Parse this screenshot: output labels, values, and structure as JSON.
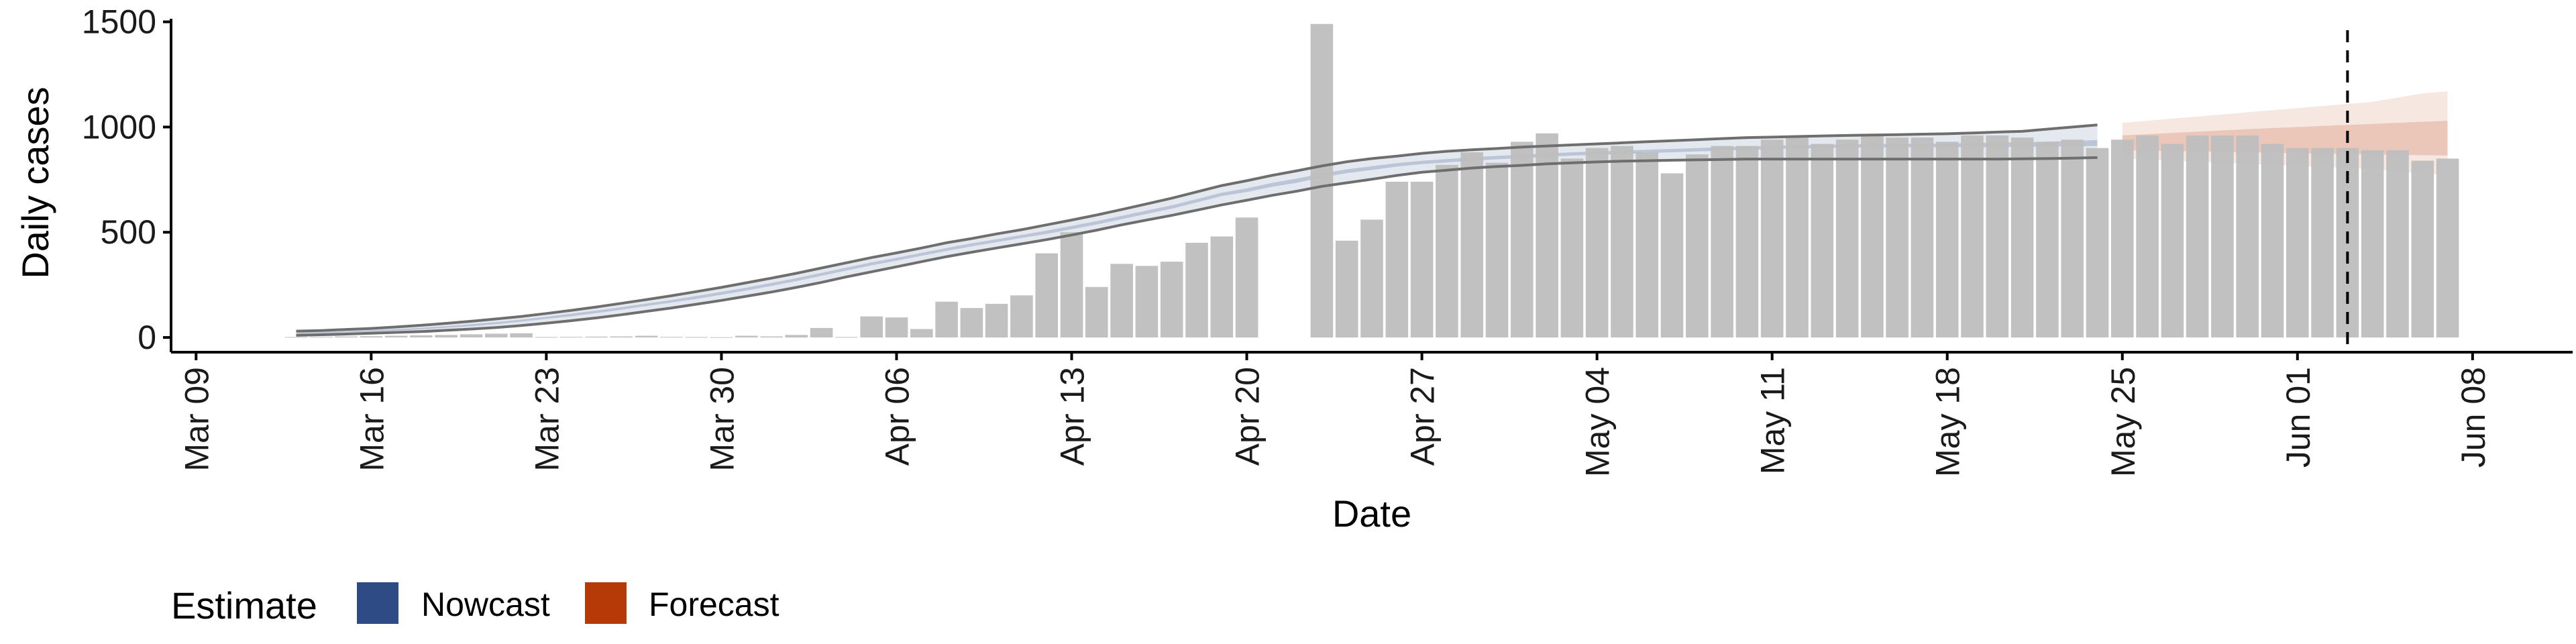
{
  "chart_data": {
    "type": "bar",
    "title": "",
    "xlabel": "Date",
    "ylabel": "Daily cases",
    "ylim": [
      -70,
      1540
    ],
    "y_ticks": [
      0,
      500,
      1000,
      1500
    ],
    "x_ticks": [
      "Mar 09",
      "Mar 16",
      "Mar 23",
      "Mar 30",
      "Apr 06",
      "Apr 13",
      "Apr 20",
      "Apr 27",
      "May 04",
      "May 11",
      "May 18",
      "May 25",
      "Jun 01",
      "Jun 08"
    ],
    "x_range": [
      "2020-03-08",
      "2020-06-12"
    ],
    "vline_date": "2020-06-03",
    "colors": {
      "bars": "#bebebe",
      "nowcast": "#2f4b86",
      "forecast": "#b53a07",
      "ci_line": "#6e6e6e"
    },
    "legend": {
      "title": "Estimate",
      "position": "bottom-left",
      "items": [
        {
          "label": "Nowcast",
          "color": "#2f4b86"
        },
        {
          "label": "Forecast",
          "color": "#b53a07"
        }
      ]
    },
    "series": [
      {
        "name": "Daily cases",
        "start_date": "2020-03-13",
        "values": [
          2,
          3,
          5,
          6,
          8,
          10,
          12,
          15,
          18,
          20,
          2,
          3,
          4,
          5,
          8,
          3,
          2,
          1,
          8,
          5,
          12,
          45,
          2,
          100,
          95,
          40,
          170,
          140,
          160,
          200,
          400,
          500,
          240,
          350,
          340,
          360,
          450,
          480,
          570,
          null,
          null,
          1490,
          460,
          560,
          740,
          740,
          820,
          880,
          830,
          930,
          970,
          850,
          900,
          910,
          880,
          780,
          870,
          910,
          910,
          940,
          950,
          920,
          940,
          960,
          950,
          950,
          930,
          960,
          960,
          950,
          930,
          940,
          900,
          940,
          960,
          920,
          960,
          960,
          960,
          920,
          900,
          900,
          900,
          890,
          890,
          840,
          850
        ]
      }
    ],
    "nowcast": {
      "name": "Nowcast",
      "start_date": "2020-03-13",
      "end_date": "2020-05-24",
      "median": [
        20,
        23,
        27,
        31,
        36,
        42,
        50,
        58,
        68,
        80,
        93,
        107,
        122,
        138,
        155,
        172,
        190,
        210,
        230,
        252,
        275,
        300,
        325,
        350,
        372,
        395,
        418,
        440,
        460,
        480,
        500,
        522,
        545,
        570,
        595,
        620,
        650,
        680,
        700,
        725,
        745,
        770,
        790,
        805,
        820,
        832,
        840,
        848,
        855,
        860,
        866,
        872,
        876,
        880,
        884,
        888,
        892,
        896,
        900,
        903,
        906,
        908,
        910,
        911,
        912,
        912,
        912,
        913,
        914,
        915,
        916,
        918,
        920
      ],
      "upper90": [
        30,
        33,
        38,
        43,
        50,
        58,
        67,
        77,
        88,
        100,
        114,
        129,
        145,
        162,
        180,
        198,
        218,
        238,
        260,
        282,
        305,
        330,
        355,
        380,
        402,
        425,
        450,
        470,
        492,
        512,
        535,
        558,
        582,
        608,
        635,
        662,
        692,
        722,
        745,
        770,
        792,
        815,
        835,
        850,
        862,
        875,
        885,
        892,
        898,
        905,
        910,
        915,
        920,
        925,
        930,
        935,
        940,
        945,
        950,
        952,
        955,
        958,
        960,
        962,
        964,
        966,
        968,
        972,
        976,
        980,
        990,
        1000,
        1010
      ],
      "lower90": [
        10,
        13,
        16,
        20,
        24,
        28,
        34,
        40,
        47,
        57,
        68,
        80,
        93,
        108,
        124,
        140,
        158,
        176,
        196,
        216,
        238,
        262,
        288,
        312,
        336,
        360,
        384,
        405,
        425,
        445,
        465,
        487,
        510,
        535,
        558,
        580,
        605,
        630,
        652,
        675,
        695,
        718,
        735,
        752,
        770,
        785,
        795,
        805,
        812,
        818,
        825,
        830,
        834,
        838,
        840,
        842,
        844,
        846,
        848,
        848,
        848,
        848,
        848,
        848,
        848,
        848,
        848,
        848,
        848,
        849,
        850,
        852,
        855
      ],
      "upper50": [
        23,
        26,
        30,
        35,
        40,
        46,
        54,
        63,
        73,
        85,
        98,
        113,
        128,
        144,
        161,
        178,
        197,
        217,
        237,
        259,
        282,
        307,
        332,
        357,
        379,
        402,
        425,
        447,
        467,
        487,
        508,
        530,
        553,
        578,
        603,
        628,
        658,
        688,
        709,
        734,
        755,
        779,
        799,
        814,
        828,
        840,
        848,
        856,
        863,
        868,
        874,
        880,
        884,
        888,
        892,
        896,
        900,
        904,
        908,
        911,
        914,
        916,
        918,
        919,
        920,
        921,
        922,
        924,
        926,
        928,
        930,
        934,
        938
      ],
      "lower50": [
        17,
        20,
        24,
        27,
        32,
        38,
        46,
        53,
        63,
        75,
        88,
        101,
        116,
        132,
        149,
        166,
        183,
        203,
        223,
        245,
        268,
        293,
        318,
        343,
        365,
        388,
        411,
        433,
        453,
        473,
        492,
        514,
        537,
        562,
        587,
        612,
        642,
        672,
        691,
        716,
        735,
        761,
        781,
        796,
        812,
        824,
        832,
        840,
        847,
        852,
        858,
        864,
        868,
        872,
        876,
        880,
        884,
        888,
        892,
        895,
        898,
        900,
        902,
        903,
        904,
        904,
        904,
        904,
        905,
        906,
        907,
        908,
        910
      ]
    },
    "forecast": {
      "name": "Forecast",
      "start_date": "2020-05-25",
      "end_date": "2020-06-07",
      "median": [
        920,
        922,
        925,
        928,
        930,
        932,
        935,
        938,
        940,
        942,
        945,
        948,
        950,
        952
      ],
      "upper90": [
        1020,
        1030,
        1040,
        1050,
        1060,
        1070,
        1080,
        1090,
        1100,
        1110,
        1120,
        1140,
        1160,
        1170
      ],
      "lower90": [
        850,
        845,
        840,
        835,
        830,
        825,
        820,
        815,
        810,
        805,
        800,
        790,
        780,
        770
      ],
      "upper50": [
        960,
        966,
        972,
        978,
        984,
        990,
        995,
        1000,
        1005,
        1010,
        1015,
        1020,
        1025,
        1030
      ],
      "lower50": [
        890,
        888,
        886,
        884,
        882,
        880,
        878,
        876,
        874,
        872,
        870,
        868,
        866,
        865
      ]
    }
  }
}
